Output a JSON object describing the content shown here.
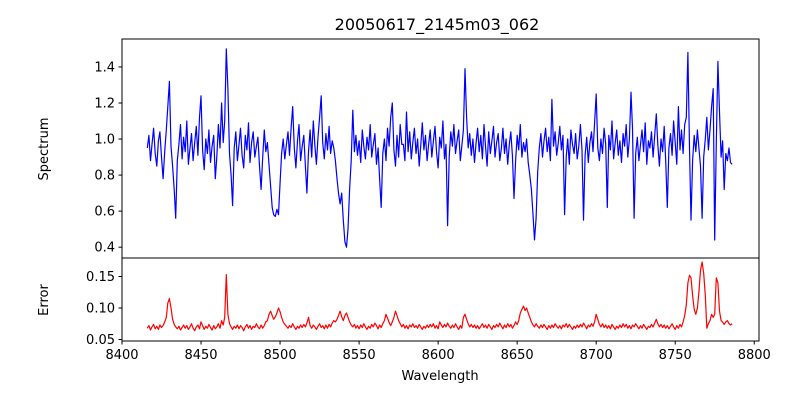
{
  "title": "20050617_2145m03_062",
  "chart_data": [
    {
      "type": "line",
      "panel": "top",
      "title": "20050617_2145m03_062",
      "ylabel": "Spectrum",
      "series_name": "spectrum",
      "color": "#0000ff",
      "line_width": 1.2,
      "grid": false,
      "legend": "none",
      "xlim": [
        8400,
        8803
      ],
      "ylim": [
        0.34,
        1.555
      ],
      "yticks": [
        0.4,
        0.6,
        0.8,
        1.0,
        1.2,
        1.4
      ],
      "ytick_labels": [
        "0.4",
        "0.6",
        "0.8",
        "1.0",
        "1.2",
        "1.4"
      ],
      "xticks": [],
      "xtick_labels": [],
      "x_start": 8416,
      "x_step": 1,
      "values": [
        0.95,
        1.02,
        0.88,
        0.97,
        1.06,
        0.92,
        0.85,
        0.99,
        1.04,
        0.9,
        0.78,
        0.93,
        1.05,
        1.18,
        1.32,
        0.96,
        0.85,
        0.72,
        0.56,
        0.88,
        0.97,
        1.08,
        0.89,
        1.01,
        0.93,
        1.1,
        0.86,
        0.95,
        1.03,
        0.88,
        0.98,
        1.07,
        0.91,
        1.12,
        1.24,
        0.94,
        0.83,
        1.0,
        0.92,
        1.05,
        0.87,
        0.96,
        1.02,
        0.78,
        0.9,
        1.08,
        0.95,
        1.2,
        0.98,
        1.1,
        1.5,
        1.28,
        0.92,
        0.8,
        0.63,
        0.95,
        1.04,
        0.88,
        0.97,
        1.06,
        0.91,
        0.84,
        1.02,
        0.94,
        1.09,
        0.87,
        0.98,
        1.04,
        0.9,
        0.96,
        1.01,
        0.85,
        0.72,
        0.9,
        1.05,
        0.93,
        0.98,
        0.86,
        0.74,
        0.62,
        0.58,
        0.57,
        0.61,
        0.58,
        0.76,
        0.92,
        1.0,
        0.89,
        0.97,
        1.04,
        0.91,
        1.06,
        1.18,
        0.95,
        0.84,
        0.99,
        1.08,
        0.88,
        0.96,
        1.02,
        0.85,
        0.7,
        0.93,
        1.05,
        0.9,
        1.1,
        0.97,
        0.86,
        1.01,
        1.12,
        1.24,
        0.98,
        0.89,
        1.03,
        0.94,
        1.07,
        0.92,
        0.99,
        0.95,
        0.88,
        0.78,
        0.7,
        0.64,
        0.7,
        0.55,
        0.43,
        0.4,
        0.5,
        0.72,
        0.88,
        1.16,
        0.93,
        1.02,
        0.91,
        0.99,
        0.87,
        1.05,
        0.96,
        0.89,
        1.01,
        0.94,
        1.08,
        0.9,
        0.97,
        1.03,
        0.86,
        0.95,
        0.78,
        0.62,
        0.92,
        1.0,
        0.88,
        1.06,
        0.96,
        1.12,
        1.2,
        0.94,
        0.85,
        1.02,
        0.9,
        1.08,
        0.97,
        0.97,
        0.88,
        1.15,
        0.93,
        1.04,
        0.89,
        0.98,
        1.06,
        0.92,
        1.0,
        0.85,
        0.96,
        1.09,
        0.94,
        1.02,
        0.88,
        0.97,
        1.05,
        0.9,
        0.99,
        1.07,
        0.93,
        0.84,
        1.01,
        0.95,
        1.1,
        0.89,
        0.97,
        0.52,
        0.9,
        1.04,
        0.96,
        1.08,
        0.92,
        0.99,
        1.05,
        0.88,
        0.96,
        1.05,
        1.39,
        1.12,
        0.95,
        1.03,
        0.91,
        1.0,
        0.87,
        0.98,
        1.06,
        0.93,
        1.02,
        0.89,
        1.08,
        0.96,
        0.85,
        1.04,
        0.92,
        0.99,
        1.07,
        0.9,
        0.98,
        1.03,
        0.88,
        0.95,
        1.06,
        0.92,
        1.0,
        0.86,
        0.97,
        1.04,
        0.91,
        0.67,
        0.88,
        1.02,
        0.94,
        1.08,
        0.9,
        0.98,
        0.93,
        1.0,
        0.87,
        0.8,
        0.72,
        0.58,
        0.44,
        0.56,
        0.82,
        0.95,
        1.03,
        0.9,
        0.99,
        1.06,
        0.93,
        1.01,
        0.88,
        1.22,
        0.96,
        1.04,
        0.91,
        0.98,
        1.07,
        0.94,
        1.02,
        0.58,
        0.9,
        1.0,
        0.86,
        1.05,
        0.97,
        0.92,
        1.03,
        0.89,
        0.96,
        1.08,
        0.94,
        0.55,
        0.91,
        1.01,
        0.87,
        0.98,
        1.04,
        0.93,
        1.09,
        1.25,
        0.95,
        0.88,
        1.0,
        0.92,
        1.06,
        0.97,
        0.62,
        1.02,
        0.94,
        1.1,
        0.89,
        0.98,
        1.05,
        0.91,
        0.99,
        0.87,
        1.03,
        0.96,
        1.08,
        0.9,
        1.0,
        1.26,
        1.06,
        0.56,
        0.92,
        1.01,
        0.88,
        0.97,
        1.05,
        0.93,
        1.09,
        0.86,
        0.99,
        0.95,
        1.04,
        0.9,
        1.02,
        1.14,
        0.97,
        0.85,
        1.0,
        0.93,
        1.07,
        0.88,
        0.62,
        0.95,
        1.03,
        0.91,
        1.1,
        0.98,
        0.86,
        1.18,
        0.94,
        1.05,
        0.92,
        1.08,
        1.12,
        1.48,
        0.95,
        0.55,
        0.88,
        1.02,
        0.93,
        1.05,
        0.95,
        0.85,
        0.56,
        0.9,
        1.0,
        1.12,
        0.94,
        1.05,
        1.18,
        1.28,
        0.44,
        0.98,
        1.43,
        1.15,
        0.9,
        0.99,
        0.72,
        0.92,
        0.88,
        0.95,
        0.87,
        0.86
      ]
    },
    {
      "type": "line",
      "panel": "bottom",
      "ylabel": "Error",
      "xlabel": "Wavelength",
      "series_name": "error",
      "color": "#ff0000",
      "line_width": 1.2,
      "grid": false,
      "legend": "none",
      "xlim": [
        8400,
        8803
      ],
      "ylim": [
        0.0476,
        0.1794
      ],
      "yticks": [
        0.05,
        0.1,
        0.15
      ],
      "ytick_labels": [
        "0.05",
        "0.10",
        "0.15"
      ],
      "xticks": [
        8400,
        8450,
        8500,
        8550,
        8600,
        8650,
        8700,
        8750,
        8800
      ],
      "xtick_labels": [
        "8400",
        "8450",
        "8500",
        "8550",
        "8600",
        "8650",
        "8700",
        "8750",
        "8800"
      ],
      "x_start": 8416,
      "x_step": 1,
      "values": [
        0.068,
        0.072,
        0.065,
        0.07,
        0.074,
        0.067,
        0.071,
        0.066,
        0.073,
        0.069,
        0.072,
        0.078,
        0.085,
        0.108,
        0.115,
        0.1,
        0.082,
        0.074,
        0.07,
        0.067,
        0.071,
        0.065,
        0.069,
        0.073,
        0.068,
        0.072,
        0.066,
        0.07,
        0.075,
        0.068,
        0.064,
        0.07,
        0.073,
        0.067,
        0.078,
        0.072,
        0.066,
        0.071,
        0.068,
        0.074,
        0.069,
        0.065,
        0.072,
        0.067,
        0.07,
        0.075,
        0.068,
        0.08,
        0.073,
        0.085,
        0.153,
        0.09,
        0.075,
        0.07,
        0.066,
        0.071,
        0.068,
        0.073,
        0.067,
        0.072,
        0.069,
        0.064,
        0.07,
        0.074,
        0.068,
        0.072,
        0.066,
        0.071,
        0.069,
        0.075,
        0.07,
        0.067,
        0.073,
        0.068,
        0.072,
        0.078,
        0.08,
        0.09,
        0.095,
        0.088,
        0.082,
        0.086,
        0.092,
        0.1,
        0.094,
        0.085,
        0.078,
        0.074,
        0.071,
        0.068,
        0.072,
        0.069,
        0.075,
        0.07,
        0.066,
        0.071,
        0.068,
        0.073,
        0.069,
        0.074,
        0.07,
        0.076,
        0.085,
        0.072,
        0.068,
        0.073,
        0.07,
        0.066,
        0.071,
        0.075,
        0.069,
        0.072,
        0.067,
        0.073,
        0.068,
        0.074,
        0.07,
        0.076,
        0.08,
        0.078,
        0.082,
        0.088,
        0.095,
        0.086,
        0.08,
        0.088,
        0.092,
        0.085,
        0.078,
        0.073,
        0.07,
        0.074,
        0.068,
        0.072,
        0.067,
        0.073,
        0.069,
        0.075,
        0.07,
        0.066,
        0.071,
        0.068,
        0.074,
        0.07,
        0.076,
        0.072,
        0.067,
        0.073,
        0.069,
        0.075,
        0.08,
        0.09,
        0.084,
        0.077,
        0.072,
        0.078,
        0.085,
        0.095,
        0.088,
        0.08,
        0.075,
        0.07,
        0.074,
        0.068,
        0.072,
        0.067,
        0.073,
        0.07,
        0.075,
        0.069,
        0.072,
        0.068,
        0.074,
        0.07,
        0.066,
        0.071,
        0.068,
        0.073,
        0.069,
        0.074,
        0.07,
        0.075,
        0.068,
        0.072,
        0.067,
        0.078,
        0.073,
        0.069,
        0.074,
        0.07,
        0.076,
        0.071,
        0.068,
        0.073,
        0.069,
        0.075,
        0.07,
        0.066,
        0.072,
        0.068,
        0.085,
        0.09,
        0.082,
        0.075,
        0.07,
        0.074,
        0.069,
        0.073,
        0.068,
        0.072,
        0.067,
        0.071,
        0.075,
        0.069,
        0.073,
        0.068,
        0.074,
        0.07,
        0.066,
        0.072,
        0.069,
        0.074,
        0.07,
        0.076,
        0.071,
        0.067,
        0.073,
        0.069,
        0.075,
        0.07,
        0.074,
        0.068,
        0.072,
        0.078,
        0.074,
        0.08,
        0.092,
        0.098,
        0.103,
        0.096,
        0.1,
        0.092,
        0.085,
        0.078,
        0.073,
        0.07,
        0.075,
        0.071,
        0.068,
        0.073,
        0.069,
        0.074,
        0.07,
        0.066,
        0.072,
        0.068,
        0.073,
        0.069,
        0.075,
        0.071,
        0.068,
        0.072,
        0.067,
        0.073,
        0.07,
        0.075,
        0.069,
        0.074,
        0.07,
        0.066,
        0.071,
        0.068,
        0.073,
        0.069,
        0.074,
        0.07,
        0.076,
        0.072,
        0.067,
        0.073,
        0.07,
        0.075,
        0.071,
        0.078,
        0.09,
        0.082,
        0.074,
        0.07,
        0.075,
        0.069,
        0.073,
        0.068,
        0.072,
        0.067,
        0.074,
        0.07,
        0.066,
        0.071,
        0.068,
        0.073,
        0.069,
        0.075,
        0.07,
        0.074,
        0.068,
        0.072,
        0.067,
        0.073,
        0.07,
        0.075,
        0.071,
        0.067,
        0.072,
        0.068,
        0.074,
        0.07,
        0.066,
        0.071,
        0.069,
        0.074,
        0.07,
        0.076,
        0.082,
        0.075,
        0.07,
        0.074,
        0.069,
        0.073,
        0.068,
        0.072,
        0.067,
        0.071,
        0.075,
        0.07,
        0.066,
        0.072,
        0.068,
        0.074,
        0.07,
        0.078,
        0.088,
        0.105,
        0.14,
        0.152,
        0.148,
        0.12,
        0.098,
        0.09,
        0.1,
        0.125,
        0.16,
        0.173,
        0.155,
        0.12,
        0.068,
        0.075,
        0.08,
        0.09,
        0.085,
        0.09,
        0.148,
        0.14,
        0.095,
        0.08,
        0.078,
        0.074,
        0.078,
        0.08,
        0.075,
        0.073,
        0.075
      ]
    }
  ]
}
